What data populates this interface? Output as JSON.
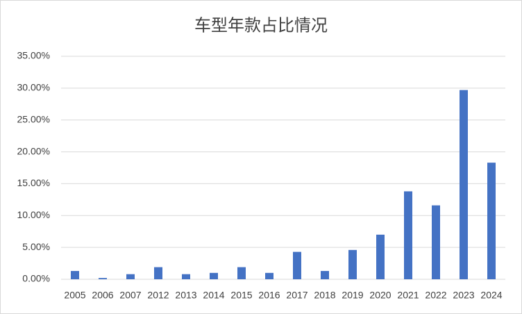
{
  "chart_data": {
    "type": "bar",
    "title": "车型年款占比情况",
    "categories": [
      "2005",
      "2006",
      "2007",
      "2012",
      "2013",
      "2014",
      "2015",
      "2016",
      "2017",
      "2018",
      "2019",
      "2020",
      "2021",
      "2022",
      "2023",
      "2024"
    ],
    "values": [
      1.3,
      0.2,
      0.8,
      1.9,
      0.8,
      1.0,
      1.9,
      1.0,
      4.3,
      1.3,
      4.6,
      7.0,
      13.8,
      11.6,
      29.7,
      18.3
    ],
    "color": "#4472c4",
    "ylim": [
      0,
      35
    ],
    "yticks": [
      {
        "value": 0,
        "label": "0.00%"
      },
      {
        "value": 5,
        "label": "5.00%"
      },
      {
        "value": 10,
        "label": "10.00%"
      },
      {
        "value": 15,
        "label": "15.00%"
      },
      {
        "value": 20,
        "label": "20.00%"
      },
      {
        "value": 25,
        "label": "25.00%"
      },
      {
        "value": 30,
        "label": "30.00%"
      },
      {
        "value": 35,
        "label": "35.00%"
      }
    ],
    "grid": true
  }
}
